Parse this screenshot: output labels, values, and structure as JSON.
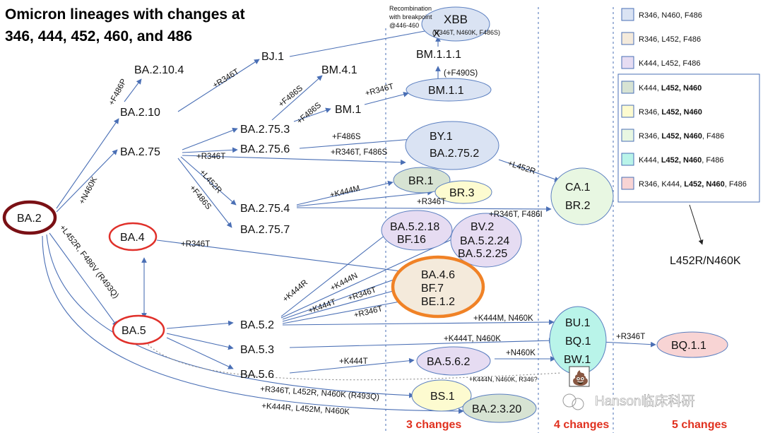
{
  "title": {
    "line1": "Omicron lineages with changes at",
    "line2": "346, 444, 452, 460, and 486"
  },
  "recombination_note": [
    "Recombination",
    "with breakpoint",
    "@446-460"
  ],
  "recombination_mark": "X",
  "xbb_detail": "(R346T, N460K, F486S)",
  "nodes": {
    "ba2": "BA.2",
    "ba2104": "BA.2.10.4",
    "ba210": "BA.2.10",
    "ba275": "BA.2.75",
    "bj1": "BJ.1",
    "bm41": "BM.4.1",
    "bm1": "BM.1",
    "bm11": "BM.1.1",
    "bm111": "BM.1.1.1",
    "xbb": "XBB",
    "ba2753": "BA.2.75.3",
    "ba2756": "BA.2.75.6",
    "by1": "BY.1",
    "ba2752": "BA.2.75.2",
    "br1": "BR.1",
    "br3": "BR.3",
    "ba2754": "BA.2.75.4",
    "ba2757": "BA.2.75.7",
    "ca1": "CA.1",
    "br2": "BR.2",
    "ba4": "BA.4",
    "ba5": "BA.5",
    "ba5218": "BA.5.2.18",
    "bf16": "BF.16",
    "bv2": "BV.2",
    "ba5224": "BA.5.2.24",
    "ba5225": "BA.5.2.25",
    "ba46": "BA.4.6",
    "bf7": "BF.7",
    "be12": "BE.1.2",
    "ba52": "BA.5.2",
    "ba53": "BA.5.3",
    "ba56": "BA.5.6",
    "bu1": "BU.1",
    "bq1": "BQ.1",
    "bw1": "BW.1",
    "bq11": "BQ.1.1",
    "ba562": "BA.5.6.2",
    "bs1": "BS.1",
    "ba2320": "BA.2.3.20",
    "l452r_n460k": "L452R/N460K"
  },
  "edge_labels": {
    "f486p": "+F486P",
    "n460k": "+N460K",
    "r346t_bj1": "+R346T",
    "f486s_bm41": "+F486S",
    "f486s_bm1": "+F486S",
    "r346t_bm11": "+R346T",
    "f490s": "(+F490S)",
    "r346t_2756": "+R346T",
    "f486s_by1": "+F486S",
    "r346t_f486s": "+R346T, F486S",
    "l452r_ca1": "+L452R",
    "l452r_2754": "+L452R",
    "f486s_2757": "+F486S",
    "k444m_br1": "+K444M",
    "r346t_br3": "+R346T",
    "r346t_f486i": "+R346T, F486I",
    "r346t_ba4": "+R346T",
    "l452r_ba5": "+L452R, F486V (R493Q)",
    "k444r": "+K444R",
    "k444n": "+K444N",
    "k444t": "+K444T",
    "r346t_a": "+R346T",
    "r346t_b": "+R346T",
    "k444m_n460k": "+K444M, N460K",
    "k444t_n460k": "+K444T, N460K",
    "r346t_bq11": "+R346T",
    "n460k_bw1": "+N460K",
    "k444t_ba562": "+K444T",
    "k444n_multi": "+K444N, N460K, R346?",
    "r346t_bs1": "+R346T, L452R, N460K (R493Q)",
    "k444r_ba2320": "+K444R, L452M, N460K"
  },
  "legend": [
    {
      "pre": "R346, N460, F486",
      "bold": "",
      "post": "",
      "color": "#dae3f3"
    },
    {
      "pre": "R346, L452, F486",
      "bold": "",
      "post": "",
      "color": "#f4eadb"
    },
    {
      "pre": "K444, L452, F486",
      "bold": "",
      "post": "",
      "color": "#e6dcf2"
    },
    {
      "pre": "K444, ",
      "bold": "L452, N460",
      "post": "",
      "color": "#d7e3d3"
    },
    {
      "pre": "R346, ",
      "bold": "L452, N460",
      "post": "",
      "color": "#fdfbd0"
    },
    {
      "pre": "R346, ",
      "bold": "L452, N460",
      "post": ", F486",
      "color": "#e8f7e2"
    },
    {
      "pre": "K444, ",
      "bold": "L452, N460",
      "post": ", F486",
      "color": "#b9f4e9"
    },
    {
      "pre": "R346, K444, ",
      "bold": "L452, N460",
      "post": ", F486",
      "color": "#f8d4d4"
    }
  ],
  "change_labels": [
    "3 changes",
    "4 changes",
    "5 changes"
  ],
  "watermark": "Hanson临床科研",
  "poop_icon": "💩",
  "colors": {
    "arrow": "#4a6fb5",
    "ba2_ring": "#7a1015",
    "red_ring": "#e0302a",
    "orange_ring": "#f08226",
    "changes_text": "#e0301e"
  }
}
